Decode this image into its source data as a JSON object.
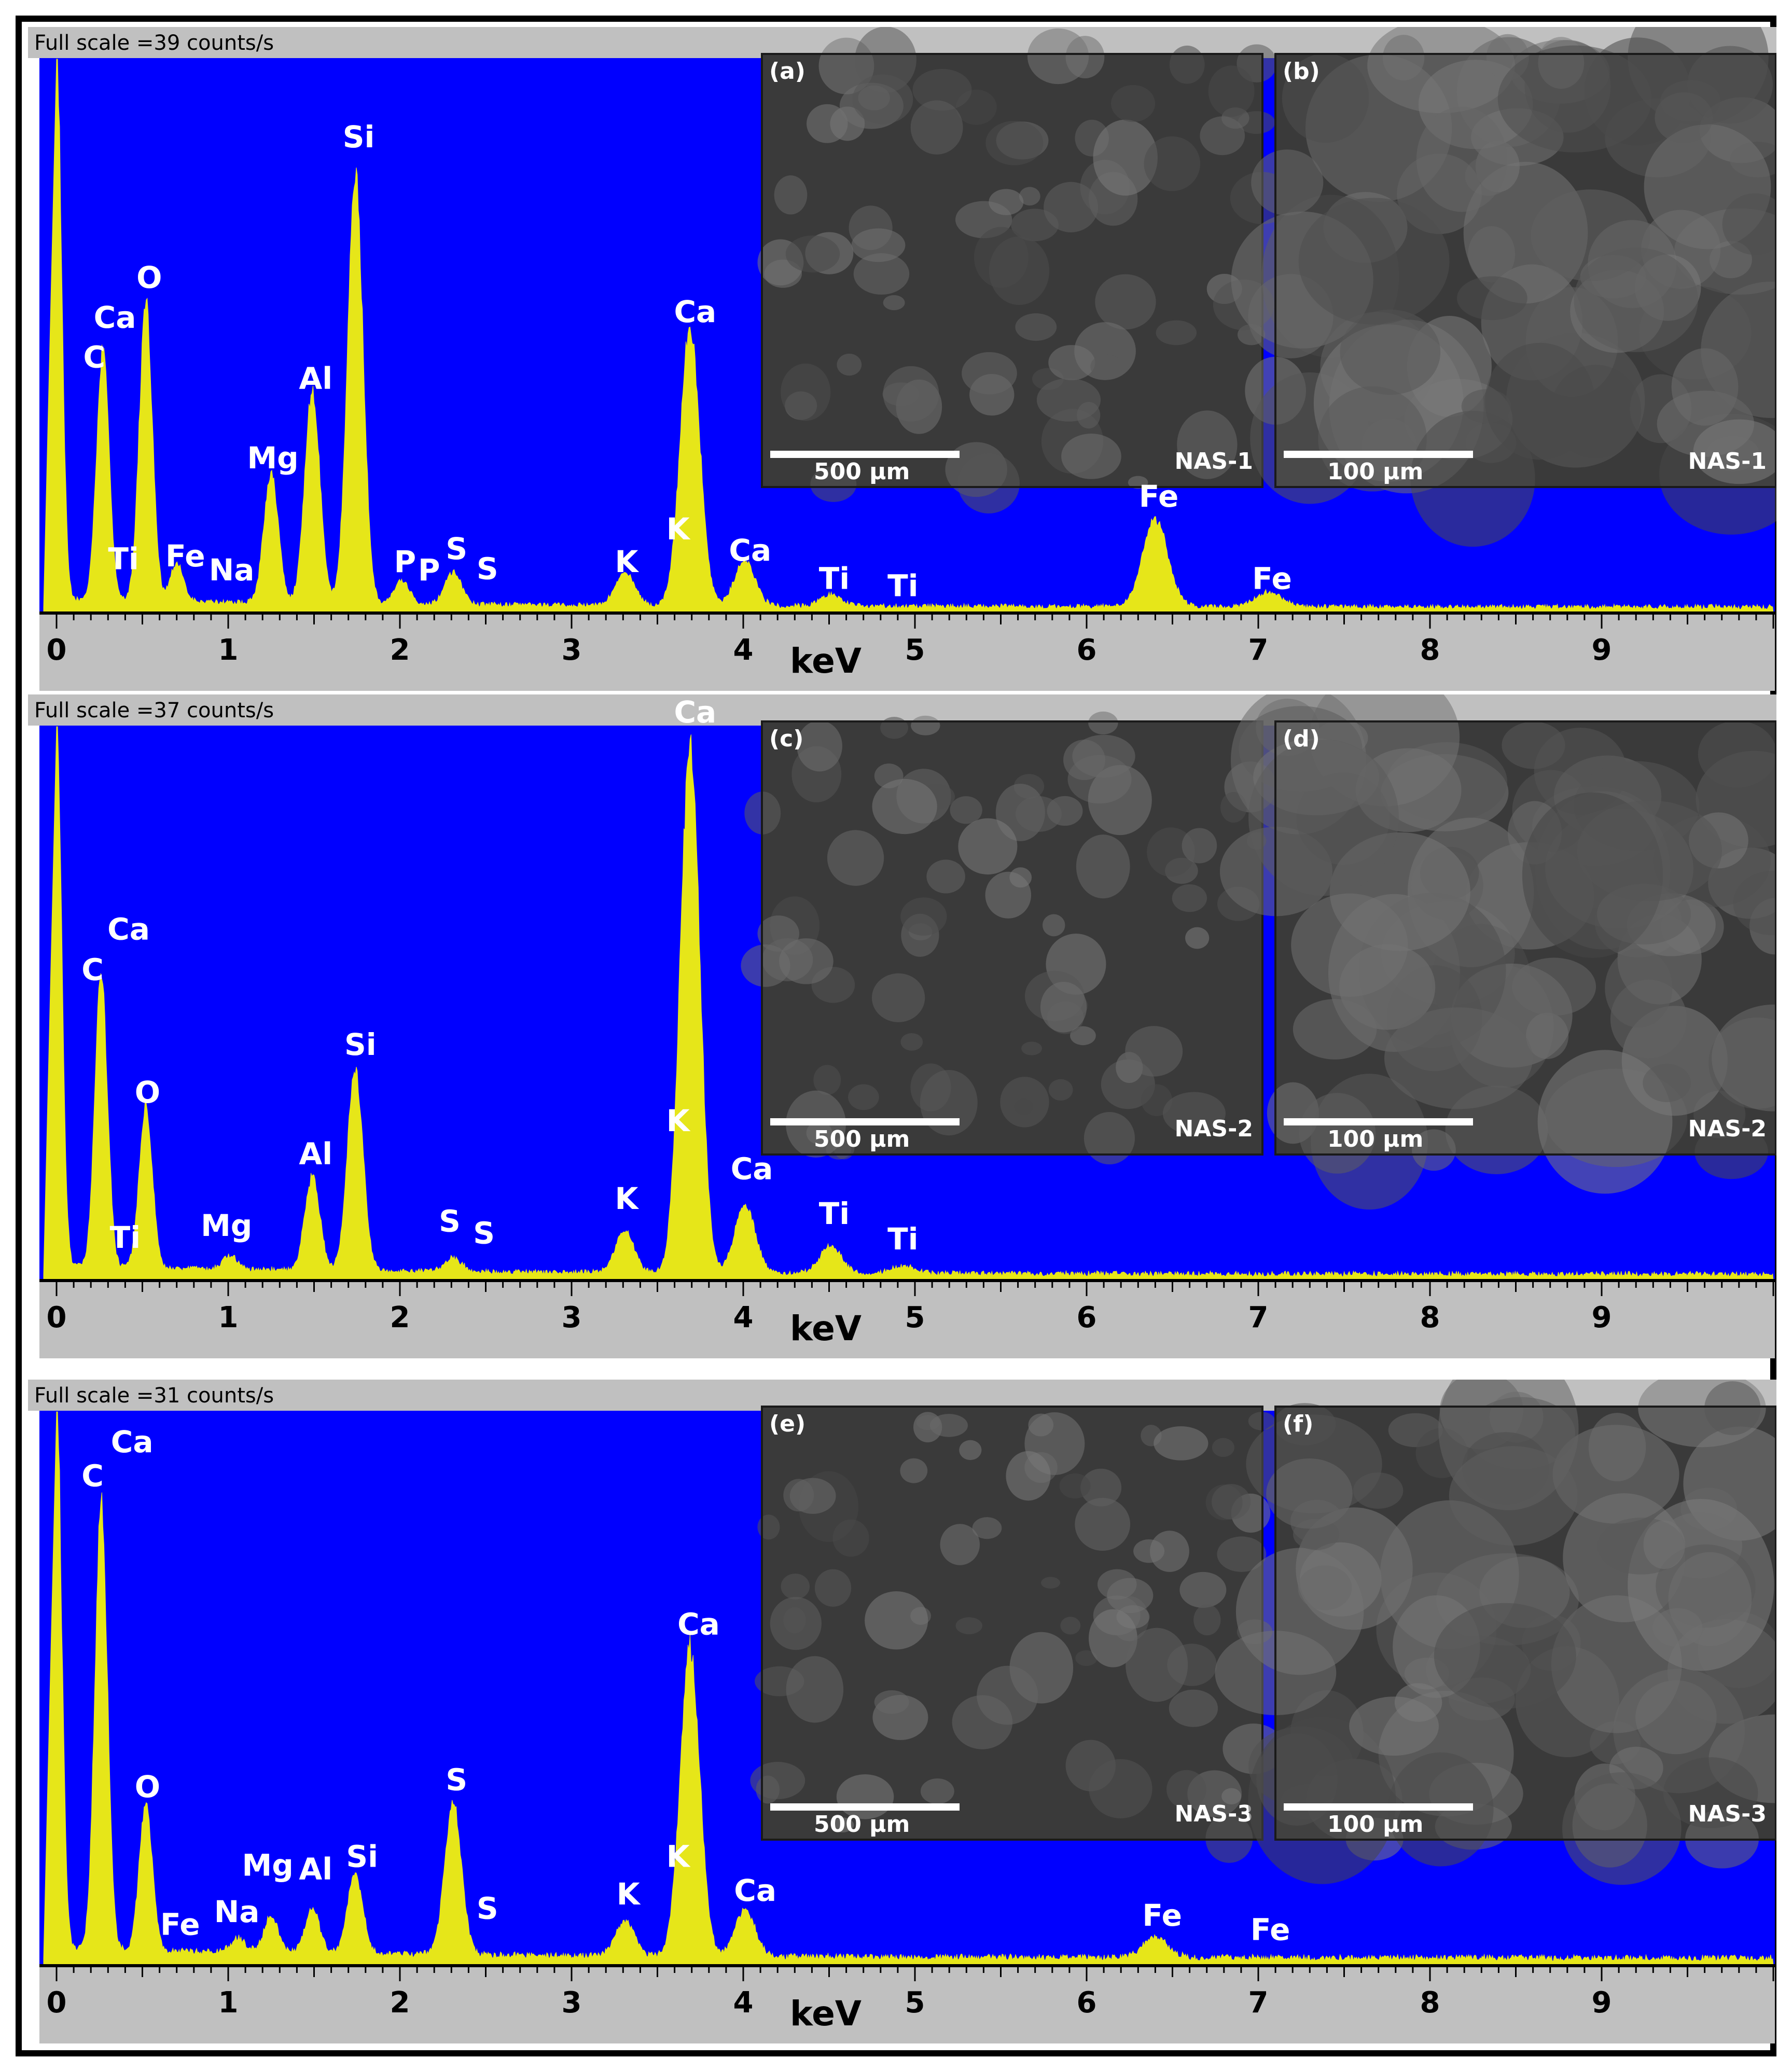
{
  "figure": {
    "xlabel": "keV",
    "x_ticks": [
      "0",
      "1",
      "2",
      "3",
      "4",
      "5",
      "6",
      "7",
      "8",
      "9"
    ]
  },
  "colors": {
    "plot_background": "#0000ff",
    "spectrum": "#e6e619",
    "axis_band": "#c0c0c0",
    "label": "#ffffff"
  },
  "panels": [
    {
      "header": "Full scale =39  counts/s",
      "sem": [
        {
          "letter": "(a)",
          "scale_bar": "500 μm",
          "sample": "NAS-1"
        },
        {
          "letter": "(b)",
          "scale_bar": "100 μm",
          "sample": "NAS-1"
        }
      ]
    },
    {
      "header": "Full scale =37  counts/s",
      "sem": [
        {
          "letter": "(c)",
          "scale_bar": "500 μm",
          "sample": "NAS-2"
        },
        {
          "letter": "(d)",
          "scale_bar": "100 μm",
          "sample": "NAS-2"
        }
      ]
    },
    {
      "header": "Full scale =31  counts/s",
      "sem": [
        {
          "letter": "(e)",
          "scale_bar": "500 μm",
          "sample": "NAS-3"
        },
        {
          "letter": "(f)",
          "scale_bar": "100 μm",
          "sample": "NAS-3"
        }
      ]
    }
  ],
  "chart_data": [
    {
      "type": "area",
      "xlabel": "keV",
      "x_range": [
        0,
        10
      ],
      "full_scale": 39,
      "unit": "counts/s",
      "peaks": [
        {
          "kev": 0.0,
          "counts": 39.0
        },
        {
          "kev": 0.27,
          "counts": 17.5
        },
        {
          "kev": 0.52,
          "counts": 21.0
        },
        {
          "kev": 0.7,
          "counts": 2.6
        },
        {
          "kev": 1.25,
          "counts": 9.0
        },
        {
          "kev": 1.49,
          "counts": 15.0
        },
        {
          "kev": 1.74,
          "counts": 30.5
        },
        {
          "kev": 2.01,
          "counts": 1.6
        },
        {
          "kev": 2.31,
          "counts": 2.3
        },
        {
          "kev": 3.31,
          "counts": 2.4
        },
        {
          "kev": 3.69,
          "counts": 19.5
        },
        {
          "kev": 4.01,
          "counts": 3.2
        },
        {
          "kev": 4.51,
          "counts": 0.8
        },
        {
          "kev": 6.4,
          "counts": 6.1
        },
        {
          "kev": 7.06,
          "counts": 1.0
        }
      ],
      "labels": [
        {
          "text": "C",
          "kev": 0.22,
          "counts": 17.0
        },
        {
          "text": "Ca",
          "kev": 0.34,
          "counts": 19.8
        },
        {
          "text": "O",
          "kev": 0.54,
          "counts": 22.6
        },
        {
          "text": "Ti",
          "kev": 0.39,
          "counts": 2.8
        },
        {
          "text": "Fe",
          "kev": 0.75,
          "counts": 3.0
        },
        {
          "text": "Na",
          "kev": 1.02,
          "counts": 2.0
        },
        {
          "text": "Mg",
          "kev": 1.26,
          "counts": 9.9
        },
        {
          "text": "Al",
          "kev": 1.51,
          "counts": 15.5
        },
        {
          "text": "Si",
          "kev": 1.76,
          "counts": 32.5
        },
        {
          "text": "P",
          "kev": 2.03,
          "counts": 2.6
        },
        {
          "text": "P",
          "kev": 2.17,
          "counts": 2.0
        },
        {
          "text": "S",
          "kev": 2.33,
          "counts": 3.5
        },
        {
          "text": "S",
          "kev": 2.51,
          "counts": 2.1
        },
        {
          "text": "K",
          "kev": 3.32,
          "counts": 2.6
        },
        {
          "text": "K",
          "kev": 3.62,
          "counts": 4.9
        },
        {
          "text": "Ca",
          "kev": 3.72,
          "counts": 20.2
        },
        {
          "text": "Ca",
          "kev": 4.04,
          "counts": 3.4
        },
        {
          "text": "Ti",
          "kev": 4.53,
          "counts": 1.4
        },
        {
          "text": "Ti",
          "kev": 4.93,
          "counts": 0.9
        },
        {
          "text": "Fe",
          "kev": 6.42,
          "counts": 7.2
        },
        {
          "text": "Fe",
          "kev": 7.08,
          "counts": 1.4
        }
      ]
    },
    {
      "type": "area",
      "xlabel": "keV",
      "x_range": [
        0,
        10
      ],
      "full_scale": 37,
      "unit": "counts/s",
      "peaks": [
        {
          "kev": 0.0,
          "counts": 37.0
        },
        {
          "kev": 0.26,
          "counts": 19.5
        },
        {
          "kev": 0.52,
          "counts": 10.8
        },
        {
          "kev": 1.01,
          "counts": 0.9
        },
        {
          "kev": 1.49,
          "counts": 6.2
        },
        {
          "kev": 1.74,
          "counts": 13.4
        },
        {
          "kev": 2.31,
          "counts": 0.9
        },
        {
          "kev": 3.31,
          "counts": 2.8
        },
        {
          "kev": 3.69,
          "counts": 35.0
        },
        {
          "kev": 4.01,
          "counts": 4.6
        },
        {
          "kev": 4.51,
          "counts": 1.8
        },
        {
          "kev": 4.93,
          "counts": 0.5
        }
      ],
      "labels": [
        {
          "text": "C",
          "kev": 0.21,
          "counts": 19.8
        },
        {
          "text": "Ca",
          "kev": 0.42,
          "counts": 22.5
        },
        {
          "text": "O",
          "kev": 0.53,
          "counts": 11.6
        },
        {
          "text": "Ti",
          "kev": 0.4,
          "counts": 1.9
        },
        {
          "text": "Mg",
          "kev": 0.99,
          "counts": 2.7
        },
        {
          "text": "Al",
          "kev": 1.51,
          "counts": 7.5
        },
        {
          "text": "Si",
          "kev": 1.77,
          "counts": 14.8
        },
        {
          "text": "S",
          "kev": 2.29,
          "counts": 3.0
        },
        {
          "text": "S",
          "kev": 2.49,
          "counts": 2.2
        },
        {
          "text": "K",
          "kev": 3.32,
          "counts": 4.5
        },
        {
          "text": "K",
          "kev": 3.62,
          "counts": 9.7
        },
        {
          "text": "Ca",
          "kev": 3.72,
          "counts": 37.0
        },
        {
          "text": "Ca",
          "kev": 4.05,
          "counts": 6.5
        },
        {
          "text": "Ti",
          "kev": 4.53,
          "counts": 3.5
        },
        {
          "text": "Ti",
          "kev": 4.93,
          "counts": 1.8
        }
      ]
    },
    {
      "type": "area",
      "xlabel": "keV",
      "x_range": [
        0,
        10
      ],
      "full_scale": 31,
      "unit": "counts/s",
      "peaks": [
        {
          "kev": 0.0,
          "counts": 31.0
        },
        {
          "kev": 0.26,
          "counts": 25.0
        },
        {
          "kev": 0.52,
          "counts": 8.3
        },
        {
          "kev": 1.06,
          "counts": 0.8
        },
        {
          "kev": 1.25,
          "counts": 2.0
        },
        {
          "kev": 1.49,
          "counts": 2.4
        },
        {
          "kev": 1.74,
          "counts": 4.4
        },
        {
          "kev": 2.31,
          "counts": 8.5
        },
        {
          "kev": 3.31,
          "counts": 2.0
        },
        {
          "kev": 3.69,
          "counts": 17.3
        },
        {
          "kev": 4.01,
          "counts": 2.6
        },
        {
          "kev": 6.4,
          "counts": 1.1
        }
      ],
      "labels": [
        {
          "text": "C",
          "kev": 0.21,
          "counts": 26.6
        },
        {
          "text": "Ca",
          "kev": 0.44,
          "counts": 28.5
        },
        {
          "text": "O",
          "kev": 0.53,
          "counts": 9.2
        },
        {
          "text": "Fe",
          "kev": 0.72,
          "counts": 1.5
        },
        {
          "text": "Na",
          "kev": 1.05,
          "counts": 2.2
        },
        {
          "text": "Mg",
          "kev": 1.23,
          "counts": 4.8
        },
        {
          "text": "Al",
          "kev": 1.51,
          "counts": 4.6
        },
        {
          "text": "Si",
          "kev": 1.78,
          "counts": 5.3
        },
        {
          "text": "S",
          "kev": 2.33,
          "counts": 9.6
        },
        {
          "text": "S",
          "kev": 2.51,
          "counts": 2.4
        },
        {
          "text": "K",
          "kev": 3.33,
          "counts": 3.2
        },
        {
          "text": "K",
          "kev": 3.62,
          "counts": 5.3
        },
        {
          "text": "Ca",
          "kev": 3.74,
          "counts": 18.3
        },
        {
          "text": "Ca",
          "kev": 4.07,
          "counts": 3.4
        },
        {
          "text": "Fe",
          "kev": 6.44,
          "counts": 2.0
        },
        {
          "text": "Fe",
          "kev": 7.07,
          "counts": 1.2
        }
      ]
    }
  ]
}
